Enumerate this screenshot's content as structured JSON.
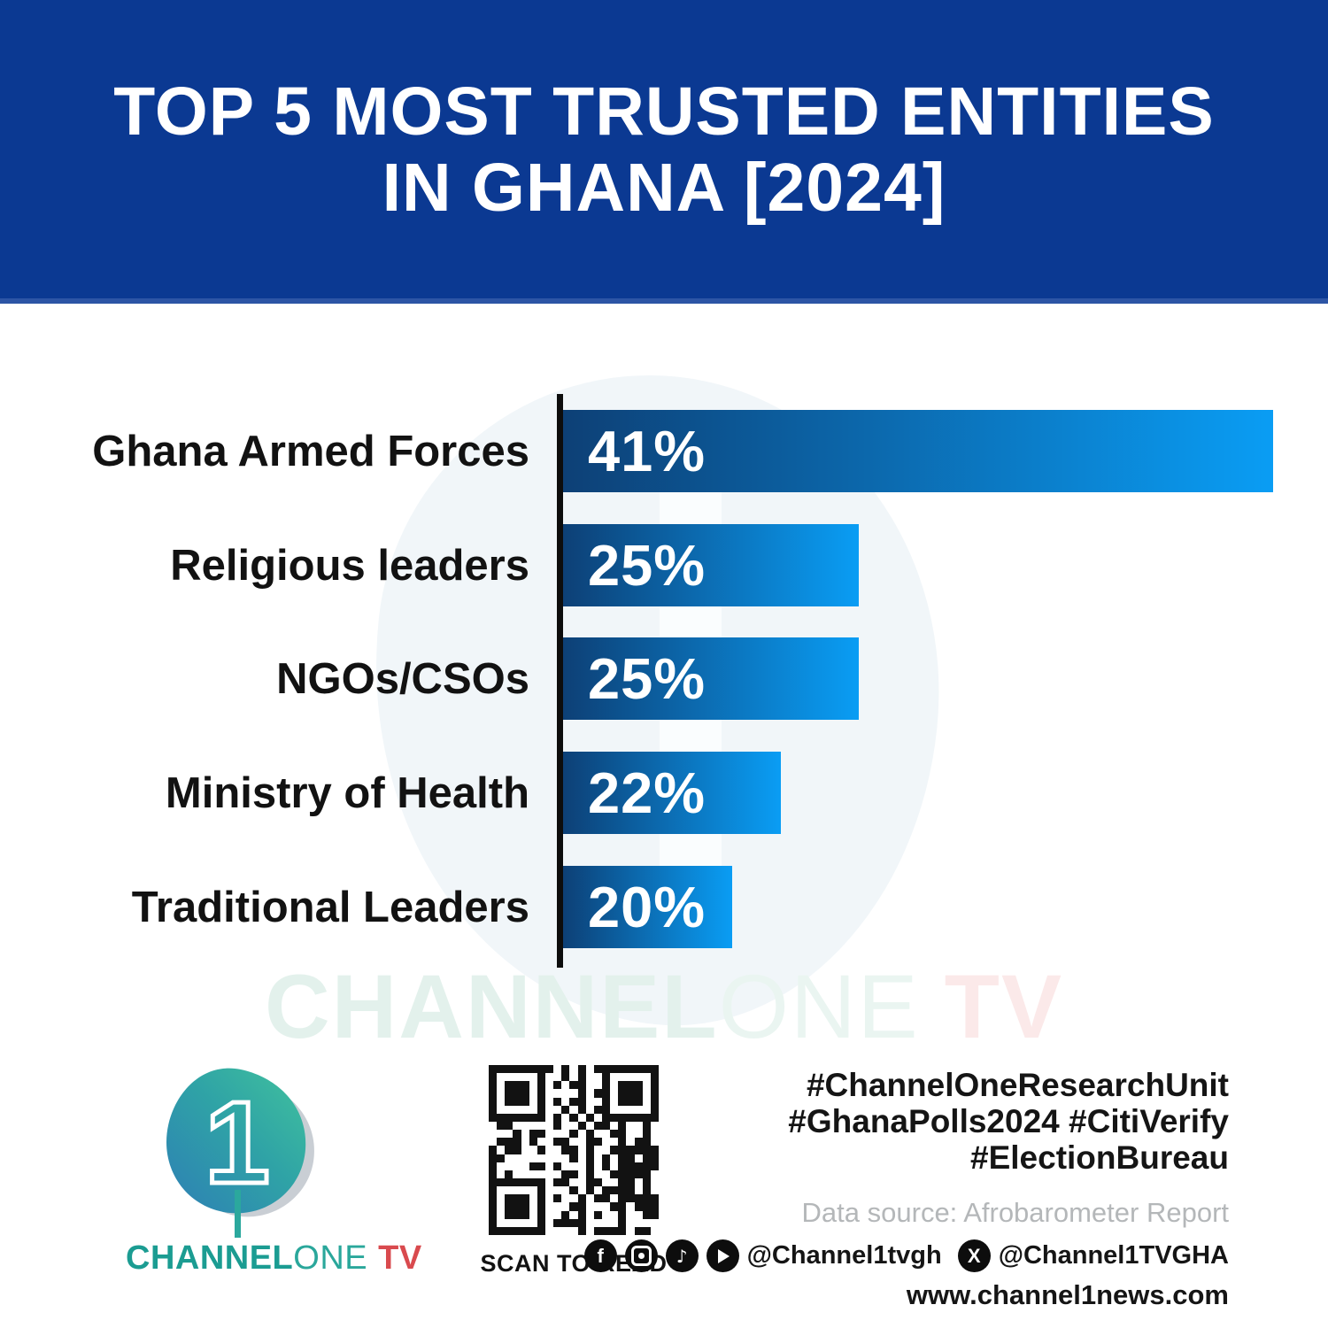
{
  "header": {
    "title_line1": "TOP 5 MOST TRUSTED ENTITIES",
    "title_line2": "IN GHANA [2024]"
  },
  "chart_data": {
    "type": "bar",
    "orientation": "horizontal",
    "title": "Top 5 most trusted entities in Ghana [2024]",
    "categories": [
      "Ghana Armed Forces",
      "Religious leaders",
      "NGOs/CSOs",
      "Ministry of Health",
      "Traditional Leaders"
    ],
    "values": [
      41,
      25,
      25,
      22,
      20
    ],
    "value_labels": [
      "41%",
      "25%",
      "25%",
      "22%",
      "20%"
    ],
    "unit": "%",
    "xlabel": "",
    "ylabel": "",
    "grid": false,
    "legend": false,
    "bar_gradient": [
      "#0d4076",
      "#0a9df4"
    ],
    "axis_color": "#0d0d0d",
    "label_color": "#121212",
    "value_label_color": "#ffffff"
  },
  "watermark": {
    "part1": "CHANNEL",
    "part2": "ONE",
    "part3": "TV"
  },
  "footer": {
    "logo": {
      "digit": "1",
      "text_part1": "CHANNEL",
      "text_part2": "ONE",
      "text_part3": "TV"
    },
    "qr_caption": "SCAN TO READ",
    "hashtags": [
      "#ChannelOneResearchUnit",
      "#GhanaPolls2024 #CitiVerify",
      "#ElectionBureau"
    ],
    "data_source": "Data source: Afrobarometer Report",
    "social": {
      "handle1": "@Channel1tvgh",
      "handle2": "@Channel1TVGHA"
    },
    "website": "www.channel1news.com"
  },
  "colors": {
    "banner_blue": "#0b3992",
    "brand_teal": "#1b9c92",
    "brand_red": "#d94a4e",
    "source_gray": "#b4b7b9"
  }
}
